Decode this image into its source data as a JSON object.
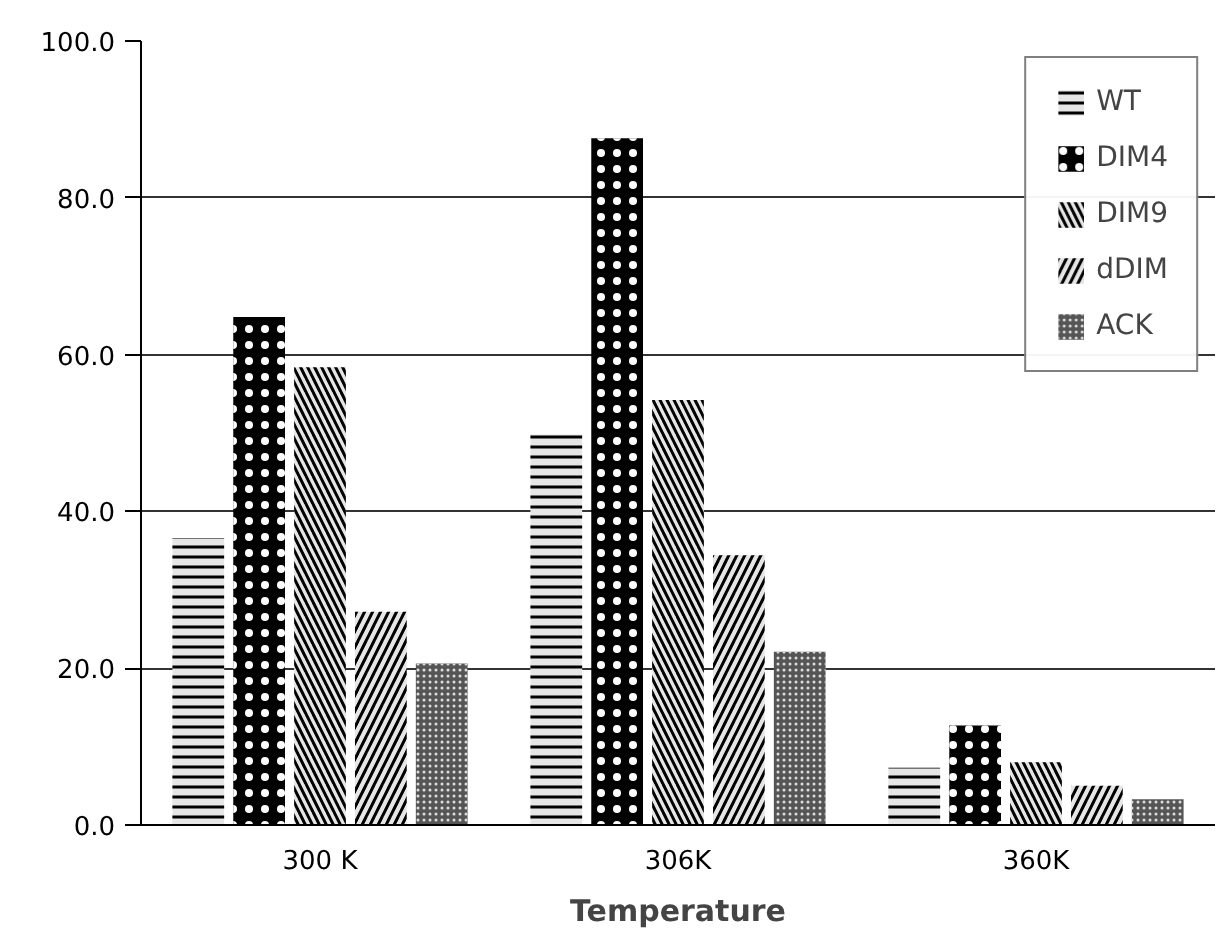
{
  "chart_data": {
    "type": "bar",
    "xlabel": "Temperature",
    "categories": [
      "300 K",
      "306K",
      "360K"
    ],
    "series": [
      {
        "name": "WT",
        "color": "#e6e6e6",
        "values": [
          36.6,
          49.8,
          7.3
        ]
      },
      {
        "name": "DIM4",
        "color": "#000000",
        "values": [
          64.8,
          87.6,
          12.7
        ]
      },
      {
        "name": "DIM9",
        "color": "#e6e6e6",
        "values": [
          58.4,
          54.2,
          8.0
        ]
      },
      {
        "name": "dDIM",
        "color": "#e6e6e6",
        "values": [
          27.2,
          34.4,
          5.0
        ]
      },
      {
        "name": "ACK",
        "color": "#555555",
        "values": [
          20.6,
          22.1,
          3.3
        ]
      }
    ],
    "ylim": [
      0,
      100
    ],
    "yticks": [
      {
        "value": 0,
        "label": "0.0"
      },
      {
        "value": 20,
        "label": "20.0"
      },
      {
        "value": 40,
        "label": "40.0"
      },
      {
        "value": 60,
        "label": "60.0"
      },
      {
        "value": 80,
        "label": "80.0"
      },
      {
        "value": 100,
        "label": "100.0"
      }
    ],
    "grid": "y",
    "legend": "top right"
  }
}
